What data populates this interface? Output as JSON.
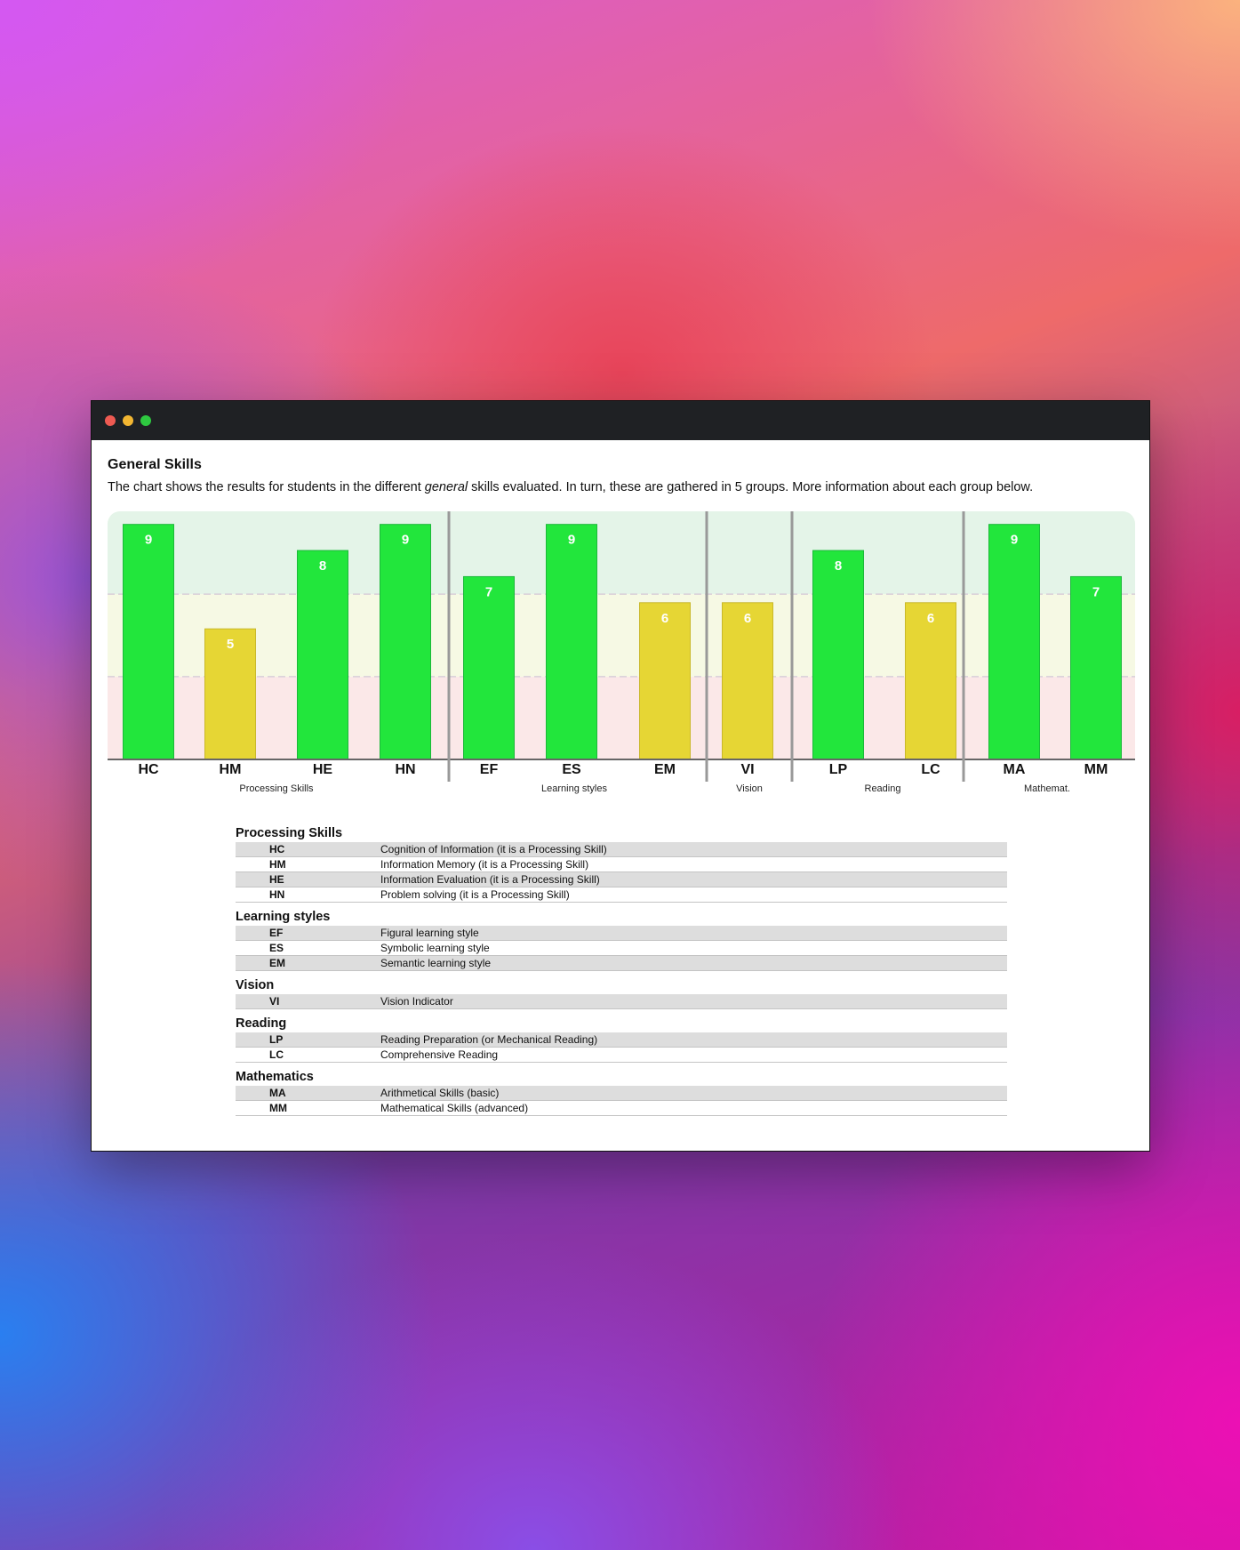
{
  "page": {
    "title": "General Skills",
    "intro_before": "The chart shows the results for students in the different ",
    "intro_em": "general",
    "intro_after": " skills evaluated. In turn, these are gathered in 5 groups. More information about each group below."
  },
  "colors": {
    "high": "#22e63c",
    "mid": "#e6d634",
    "band_high": "#e4f4e8",
    "band_mid": "#f6f9e4",
    "band_low": "#fbe8e8"
  },
  "chart_data": {
    "type": "bar",
    "categories": [
      "HC",
      "HM",
      "HE",
      "HN",
      "EF",
      "ES",
      "EM",
      "VI",
      "LP",
      "LC",
      "MA",
      "MM"
    ],
    "values": [
      9,
      5,
      8,
      9,
      7,
      9,
      6,
      6,
      8,
      6,
      9,
      7
    ],
    "ylim": [
      0,
      9.5
    ],
    "groups": [
      {
        "name": "Processing Skills",
        "categories": [
          "HC",
          "HM",
          "HE",
          "HN"
        ]
      },
      {
        "name": "Learning styles",
        "categories": [
          "EF",
          "ES",
          "EM"
        ]
      },
      {
        "name": "Vision",
        "categories": [
          "VI"
        ]
      },
      {
        "name": "Reading",
        "categories": [
          "LP",
          "LC"
        ]
      },
      {
        "name": "Mathemat.",
        "categories": [
          "MA",
          "MM"
        ]
      }
    ],
    "bands": [
      {
        "from": 0,
        "to": 3.17,
        "color": "#fbe8e8"
      },
      {
        "from": 3.17,
        "to": 6.33,
        "color": "#f6f9e4"
      },
      {
        "from": 6.33,
        "to": 9.5,
        "color": "#e4f4e8"
      }
    ],
    "data_labels": true,
    "grid": false
  },
  "legend": [
    {
      "title": "Processing Skills",
      "items": [
        {
          "code": "HC",
          "desc": "Cognition of Information (it is a Processing Skill)"
        },
        {
          "code": "HM",
          "desc": "Information Memory (it is a Processing Skill)"
        },
        {
          "code": "HE",
          "desc": "Information Evaluation (it is a Processing Skill)"
        },
        {
          "code": "HN",
          "desc": "Problem solving (it is a Processing Skill)"
        }
      ]
    },
    {
      "title": "Learning styles",
      "items": [
        {
          "code": "EF",
          "desc": "Figural learning style"
        },
        {
          "code": "ES",
          "desc": "Symbolic learning style"
        },
        {
          "code": "EM",
          "desc": "Semantic learning style"
        }
      ]
    },
    {
      "title": "Vision",
      "items": [
        {
          "code": "VI",
          "desc": "Vision Indicator"
        }
      ]
    },
    {
      "title": "Reading",
      "items": [
        {
          "code": "LP",
          "desc": "Reading Preparation (or Mechanical Reading)"
        },
        {
          "code": "LC",
          "desc": "Comprehensive Reading"
        }
      ]
    },
    {
      "title": "Mathematics",
      "items": [
        {
          "code": "MA",
          "desc": "Arithmetical Skills (basic)"
        },
        {
          "code": "MM",
          "desc": "Mathematical Skills (advanced)"
        }
      ]
    }
  ]
}
